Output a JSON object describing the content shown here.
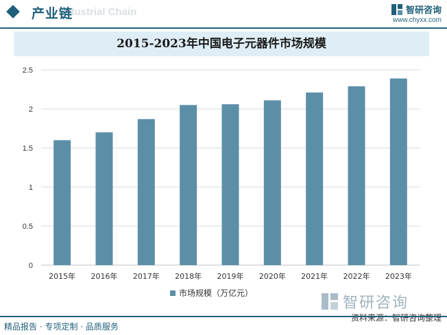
{
  "header": {
    "title": "产业链",
    "subtitle": "Industrial Chain",
    "brand_name": "智研咨询",
    "brand_url": "www.chyxx.com"
  },
  "footer": {
    "left": "精品报告 · 专项定制 · 品质服务",
    "source_label": "资料来源：",
    "source_name": "智研咨询整理"
  },
  "watermark": {
    "text": "智研咨询"
  },
  "colors": {
    "brand": "#1f5f7a",
    "bar": "#5b8fa8",
    "title_bg": "#dfeef6",
    "grid": "#d9d9d9"
  },
  "chart_data": {
    "type": "bar",
    "title": "2015-2023年中国电子元器件市场规模",
    "categories": [
      "2015年",
      "2016年",
      "2017年",
      "2018年",
      "2019年",
      "2020年",
      "2021年",
      "2022年",
      "2023年"
    ],
    "series": [
      {
        "name": "市场规模（万亿元）",
        "values": [
          1.6,
          1.7,
          1.87,
          2.05,
          2.06,
          2.11,
          2.21,
          2.29,
          2.39
        ]
      }
    ],
    "yticks": [
      "0",
      "0.5",
      "1",
      "1.5",
      "2",
      "2.5"
    ],
    "ylim": [
      0,
      2.5
    ],
    "grid": true,
    "legend": "bottom"
  }
}
